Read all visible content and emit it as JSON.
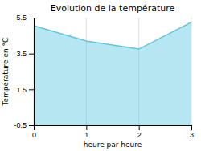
{
  "chart_data": {
    "type": "area",
    "title": "Evolution de la température",
    "xlabel": "heure par heure",
    "ylabel": "Température en °C",
    "x": [
      0,
      1,
      2,
      3
    ],
    "values": [
      5.05,
      4.2,
      3.75,
      5.25
    ],
    "color": "#5bc8e0",
    "xlim": [
      0,
      3
    ],
    "ylim": [
      -0.5,
      5.5
    ],
    "xticks": [
      0,
      1,
      2,
      3
    ],
    "yticks": [
      -0.5,
      1.5,
      3.5,
      5.5
    ],
    "grid": "x"
  }
}
